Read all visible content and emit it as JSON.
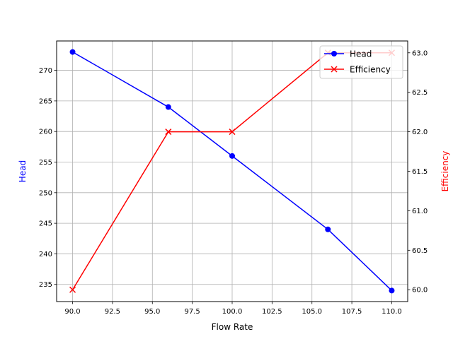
{
  "chart_data": {
    "type": "line",
    "title": "",
    "xlabel": "Flow Rate",
    "ylabel_left": "Head",
    "ylabel_right": "Efficiency",
    "xlim": [
      89.0,
      111.0
    ],
    "ylim_left": [
      232.2,
      274.8
    ],
    "ylim_right": [
      59.85,
      63.15
    ],
    "x_ticks": [
      90.0,
      92.5,
      95.0,
      97.5,
      100.0,
      102.5,
      105.0,
      107.5,
      110.0
    ],
    "x_tick_labels": [
      "90.0",
      "92.5",
      "95.0",
      "97.5",
      "100.0",
      "102.5",
      "105.0",
      "107.5",
      "110.0"
    ],
    "y_left_ticks": [
      235,
      240,
      245,
      250,
      255,
      260,
      265,
      270
    ],
    "y_left_tick_labels": [
      "235",
      "240",
      "245",
      "250",
      "255",
      "260",
      "265",
      "270"
    ],
    "y_right_ticks": [
      60.0,
      60.5,
      61.0,
      61.5,
      62.0,
      62.5,
      63.0
    ],
    "y_right_tick_labels": [
      "60.0",
      "60.5",
      "61.0",
      "61.5",
      "62.0",
      "62.5",
      "63.0"
    ],
    "grid": true,
    "legend_position": "top-right",
    "series": [
      {
        "name": "Head",
        "axis": "left",
        "color": "#0000ff",
        "marker": "circle",
        "x": [
          90,
          96,
          100,
          106,
          110
        ],
        "values": [
          273,
          264,
          256,
          244,
          234
        ]
      },
      {
        "name": "Efficiency",
        "axis": "right",
        "color": "#ff0000",
        "marker": "x",
        "x": [
          90,
          96,
          100,
          106,
          110
        ],
        "values": [
          60.0,
          62.0,
          62.0,
          63.0,
          63.0
        ]
      }
    ]
  }
}
